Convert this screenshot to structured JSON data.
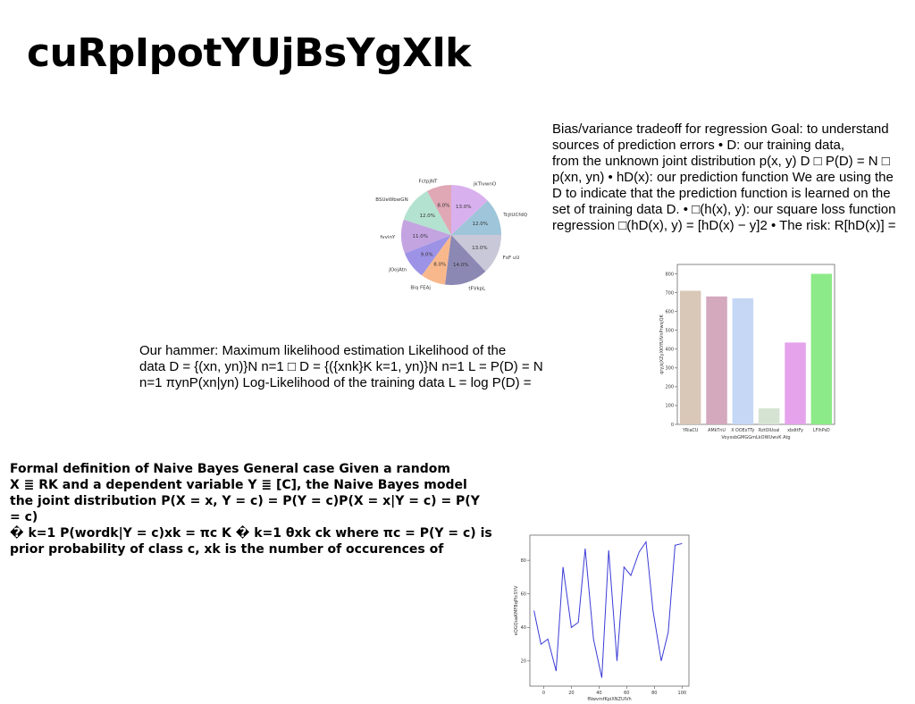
{
  "title": "cuRpIpotYUjBsYgXlk",
  "paragraphs": {
    "bias_variance": "Bias/variance tradeoff for regression Goal: to understand\nsources of prediction errors • D: our training data,\nfrom the unknown joint distribution p(x, y) D □ P(D) = N □\np(xn, yn) • hD(x): our prediction function We are using the\nD to indicate that the prediction function is learned on the\nset of training data D. • □(h(x), y): our square loss function\nregression □(hD(x), y) = [hD(x) − y]2 • The risk: R[hD(x)] =",
    "max_likelihood": "Our hammer: Maximum likelihood estimation Likelihood of the\ndata D = {(xn, yn)}N n=1 □ D = {({xnk}K k=1, yn)}N n=1 L = P(D) = N\nn=1 πynP(xn|yn) Log-Likelihood of the training data L = log P(D) =",
    "naive_bayes": "Formal definition of Naive Bayes General case Given a random\nX ≣ RK and a dependent variable Y ≣ [C], the Naive Bayes model\nthe joint distribution P(X = x, Y = c) = P(Y = c)P(X = x|Y = c) = P(Y = c)\n� k=1 P(wordk|Y = c)xk = πc K � k=1 θxk ck where πc = P(Y = c) is\nprior probability of class c, xk is the number of occurences of"
  },
  "chart_data": [
    {
      "type": "pie",
      "labels": [
        "jkTIvwnO",
        "TcjtUCfdQ",
        "FxF uU",
        "tFVkpL",
        "Biq FEAj",
        "JOojAtn",
        "fvvinY",
        "BSUeWbwGN",
        "FctpjNT"
      ],
      "values": [
        13.0,
        12.0,
        13.0,
        14.0,
        8.0,
        9.0,
        11.0,
        12.0,
        8.0
      ],
      "value_labels": [
        "13.0%",
        "12.0%",
        "13.0%",
        "14.0%",
        "8.0%",
        "9.0%",
        "11.0%",
        "12.0%",
        "8.0%"
      ],
      "colors": [
        "#d9b0ee",
        "#9ec5d9",
        "#c8c8d8",
        "#8c88b4",
        "#f9b88c",
        "#9d93e6",
        "#c3a4e1",
        "#b3e2d0",
        "#e0a7b5"
      ],
      "start_angle_deg": 90,
      "direction": "clockwise"
    },
    {
      "type": "bar",
      "categories": [
        "YRiaCU",
        "AMkTnU",
        "X OOExTTy",
        "RztOIUoal",
        "xbdttFy",
        "LFlhPsD"
      ],
      "values": [
        710,
        680,
        670,
        85,
        435,
        800
      ],
      "colors": [
        "#d9c7b7",
        "#d4a8bd",
        "#c5d7f5",
        "#d5e3d3",
        "#e5a3ec",
        "#8ceb88"
      ],
      "xlabel": "VoyxsbGMGGmLkOWUwvK Atg",
      "ylabel": "qryjsjXZyXKYfUlVnPrwsjQK",
      "ylim": [
        0,
        850
      ],
      "yticks": [
        0,
        100,
        200,
        300,
        400,
        500,
        600,
        700,
        800
      ]
    },
    {
      "type": "line",
      "x": [
        -7,
        -2,
        3,
        9,
        14,
        20,
        25,
        30,
        36,
        42,
        47,
        53,
        58,
        63,
        69,
        74,
        79,
        85,
        90,
        95,
        100
      ],
      "y": [
        50,
        30,
        33,
        14,
        76,
        40,
        43,
        87,
        33,
        10,
        86,
        20,
        76,
        71,
        85,
        91,
        50,
        20,
        37,
        89,
        90
      ],
      "color": "#3b3bd6",
      "xlabel": "fNwvmfKpiXNZUIVh",
      "ylabel": "eQGQuaKMFBqPtcSYV",
      "xlim": [
        -10,
        105
      ],
      "ylim": [
        5,
        95
      ],
      "xticks": [
        0,
        20,
        40,
        60,
        80,
        100
      ],
      "yticks": [
        20,
        40,
        60,
        80
      ]
    }
  ]
}
